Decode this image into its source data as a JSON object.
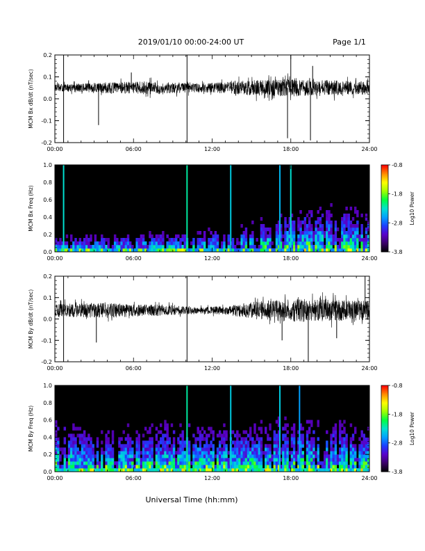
{
  "header": {
    "title": "2019/01/10  00:00-24:00 UT",
    "page": "Page 1/1",
    "xlabel": "Universal Time (hh:mm)"
  },
  "colorbar": {
    "label": "Log10 Power",
    "ticks": [
      "-0.8",
      "-1.8",
      "-2.8",
      "-3.8"
    ],
    "tick_values": [
      -0.8,
      -1.8,
      -2.8,
      -3.8
    ],
    "range": [
      -3.8,
      -0.8
    ],
    "colors": [
      "#000000",
      "#3a0066",
      "#5a00c8",
      "#1e3cff",
      "#00a0ff",
      "#00e0d0",
      "#00ff40",
      "#a0ff00",
      "#ffff00",
      "#ff8c00",
      "#ff0000"
    ]
  },
  "chart_data": [
    {
      "type": "line",
      "ylabel": "MCM Bx dB/dt (nT/sec)",
      "ylim": [
        -0.2,
        0.2
      ],
      "yticks": [
        "0.2",
        "0.1",
        "0.0",
        "-0.1",
        "-0.2"
      ],
      "ytick_values": [
        0.2,
        0.1,
        0.0,
        -0.1,
        -0.2
      ],
      "xlim": [
        "00:00",
        "24:00"
      ],
      "xticks": [
        "00:00",
        "06:00",
        "12:00",
        "18:00",
        "24:00"
      ],
      "baseline": 0.05,
      "noise_amplitude": [
        [
          0,
          0.015
        ],
        [
          4,
          0.025
        ],
        [
          7,
          0.03
        ],
        [
          11,
          0.02
        ],
        [
          15,
          0.035
        ],
        [
          18,
          0.04
        ],
        [
          21,
          0.035
        ],
        [
          24,
          0.03
        ]
      ],
      "spikes": [
        {
          "t": "00:40",
          "value": -0.2
        },
        {
          "t": "00:40",
          "value": 0.2
        },
        {
          "t": "03:20",
          "value": -0.12
        },
        {
          "t": "05:50",
          "value": 0.12
        },
        {
          "t": "10:05",
          "value": 0.2
        },
        {
          "t": "10:05",
          "value": -0.2
        },
        {
          "t": "17:45",
          "value": -0.18
        },
        {
          "t": "18:00",
          "value": 0.2
        },
        {
          "t": "19:30",
          "value": -0.19
        },
        {
          "t": "19:40",
          "value": 0.15
        }
      ]
    },
    {
      "type": "heatmap",
      "ylabel": "MCM Bx Freq (Hz)",
      "ylim": [
        0.0,
        1.0
      ],
      "yticks": [
        "1.0",
        "0.8",
        "0.6",
        "0.4",
        "0.2",
        "0.0"
      ],
      "ytick_values": [
        1.0,
        0.8,
        0.6,
        0.4,
        0.2,
        0.0
      ],
      "xlim": [
        "00:00",
        "24:00"
      ],
      "xticks": [
        "00:00",
        "06:00",
        "12:00",
        "18:00",
        "24:00"
      ],
      "zlabel": "Log10 Power",
      "zlim": [
        -3.8,
        -0.8
      ],
      "background_power": -3.8,
      "activity": [
        [
          0,
          0.05
        ],
        [
          6,
          0.08
        ],
        [
          10,
          0.1
        ],
        [
          13,
          0.15
        ],
        [
          15,
          0.22
        ],
        [
          17,
          0.3
        ],
        [
          19,
          0.4
        ],
        [
          21,
          0.45
        ],
        [
          24,
          0.35
        ]
      ],
      "low_freq_band_power": -2.7,
      "broadband_events": [
        {
          "t": "00:40",
          "power": -2.3
        },
        {
          "t": "10:05",
          "power": -2.2
        },
        {
          "t": "13:25",
          "power": -2.4
        },
        {
          "t": "17:10",
          "power": -2.5
        },
        {
          "t": "18:00",
          "power": -2.3
        }
      ]
    },
    {
      "type": "line",
      "ylabel": "MCM By dB/dt (nT/sec)",
      "ylim": [
        -0.2,
        0.2
      ],
      "yticks": [
        "0.2",
        "0.1",
        "0.0",
        "-0.1",
        "-0.2"
      ],
      "ytick_values": [
        0.2,
        0.1,
        0.0,
        -0.1,
        -0.2
      ],
      "xlim": [
        "00:00",
        "24:00"
      ],
      "xticks": [
        "00:00",
        "06:00",
        "12:00",
        "18:00",
        "24:00"
      ],
      "baseline": 0.04,
      "noise_amplitude": [
        [
          0,
          0.03
        ],
        [
          4,
          0.035
        ],
        [
          8,
          0.025
        ],
        [
          11,
          0.015
        ],
        [
          13,
          0.02
        ],
        [
          15,
          0.04
        ],
        [
          18,
          0.055
        ],
        [
          21,
          0.05
        ],
        [
          24,
          0.045
        ]
      ],
      "spikes": [
        {
          "t": "00:40",
          "value": -0.2
        },
        {
          "t": "00:40",
          "value": 0.2
        },
        {
          "t": "03:10",
          "value": -0.11
        },
        {
          "t": "10:05",
          "value": 0.2
        },
        {
          "t": "10:05",
          "value": -0.2
        },
        {
          "t": "17:20",
          "value": -0.1
        },
        {
          "t": "19:20",
          "value": -0.2
        },
        {
          "t": "21:30",
          "value": -0.09
        },
        {
          "t": "23:40",
          "value": 0.2
        }
      ]
    },
    {
      "type": "heatmap",
      "ylabel": "MCM By Freq (Hz)",
      "ylim": [
        0.0,
        1.0
      ],
      "yticks": [
        "1.0",
        "0.8",
        "0.6",
        "0.4",
        "0.2",
        "0.0"
      ],
      "ytick_values": [
        1.0,
        0.8,
        0.6,
        0.4,
        0.2,
        0.0
      ],
      "xlim": [
        "00:00",
        "24:00"
      ],
      "xticks": [
        "00:00",
        "06:00",
        "12:00",
        "18:00",
        "24:00"
      ],
      "zlabel": "Log10 Power",
      "zlim": [
        -3.8,
        -0.8
      ],
      "background_power": -3.8,
      "activity": [
        [
          0,
          0.5
        ],
        [
          3,
          0.35
        ],
        [
          6,
          0.4
        ],
        [
          9,
          0.45
        ],
        [
          12,
          0.4
        ],
        [
          15,
          0.45
        ],
        [
          18,
          0.5
        ],
        [
          21,
          0.5
        ],
        [
          24,
          0.4
        ]
      ],
      "low_freq_band_power": -2.4,
      "broadband_events": [
        {
          "t": "10:05",
          "power": -2.2
        },
        {
          "t": "13:25",
          "power": -2.4
        },
        {
          "t": "17:10",
          "power": -2.4
        },
        {
          "t": "18:40",
          "power": -2.6
        }
      ]
    }
  ]
}
